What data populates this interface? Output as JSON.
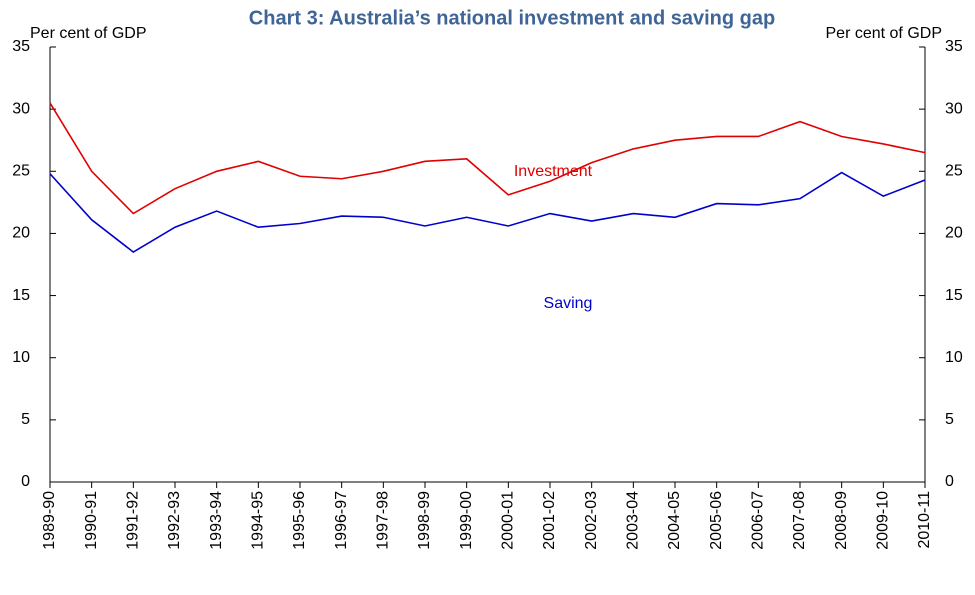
{
  "chart_data": {
    "type": "line",
    "title": "Chart 3: Australia’s national investment and saving gap",
    "ylabel": "Per cent of GDP",
    "y2label": "Per cent of GDP",
    "categories": [
      "1989-90",
      "1990-91",
      "1991-92",
      "1992-93",
      "1993-94",
      "1994-95",
      "1995-96",
      "1996-97",
      "1997-98",
      "1998-99",
      "1999-00",
      "2000-01",
      "2001-02",
      "2002-03",
      "2003-04",
      "2004-05",
      "2005-06",
      "2006-07",
      "2007-08",
      "2008-09",
      "2009-10",
      "2010-11"
    ],
    "series": [
      {
        "name": "Investment",
        "color": "#e00000",
        "values": [
          30.5,
          25.0,
          21.6,
          23.6,
          25.0,
          25.8,
          24.6,
          24.4,
          25.0,
          25.8,
          26.0,
          23.1,
          24.2,
          25.7,
          26.8,
          27.5,
          27.8,
          27.8,
          29.0,
          27.8,
          27.2,
          26.5
        ]
      },
      {
        "name": "Saving",
        "color": "#0000cc",
        "values": [
          24.8,
          21.1,
          18.5,
          20.5,
          21.8,
          20.5,
          20.8,
          21.4,
          21.3,
          20.6,
          21.3,
          20.6,
          21.6,
          21.0,
          21.6,
          21.3,
          22.4,
          22.3,
          22.8,
          24.9,
          23.0,
          24.3
        ]
      }
    ],
    "ylim": [
      0,
      35
    ],
    "yticks": [
      0,
      5,
      10,
      15,
      20,
      25,
      30,
      35
    ],
    "y2lim": [
      0,
      35
    ],
    "y2ticks": [
      0,
      5,
      10,
      15,
      20,
      25,
      30,
      35
    ],
    "grid": false
  }
}
